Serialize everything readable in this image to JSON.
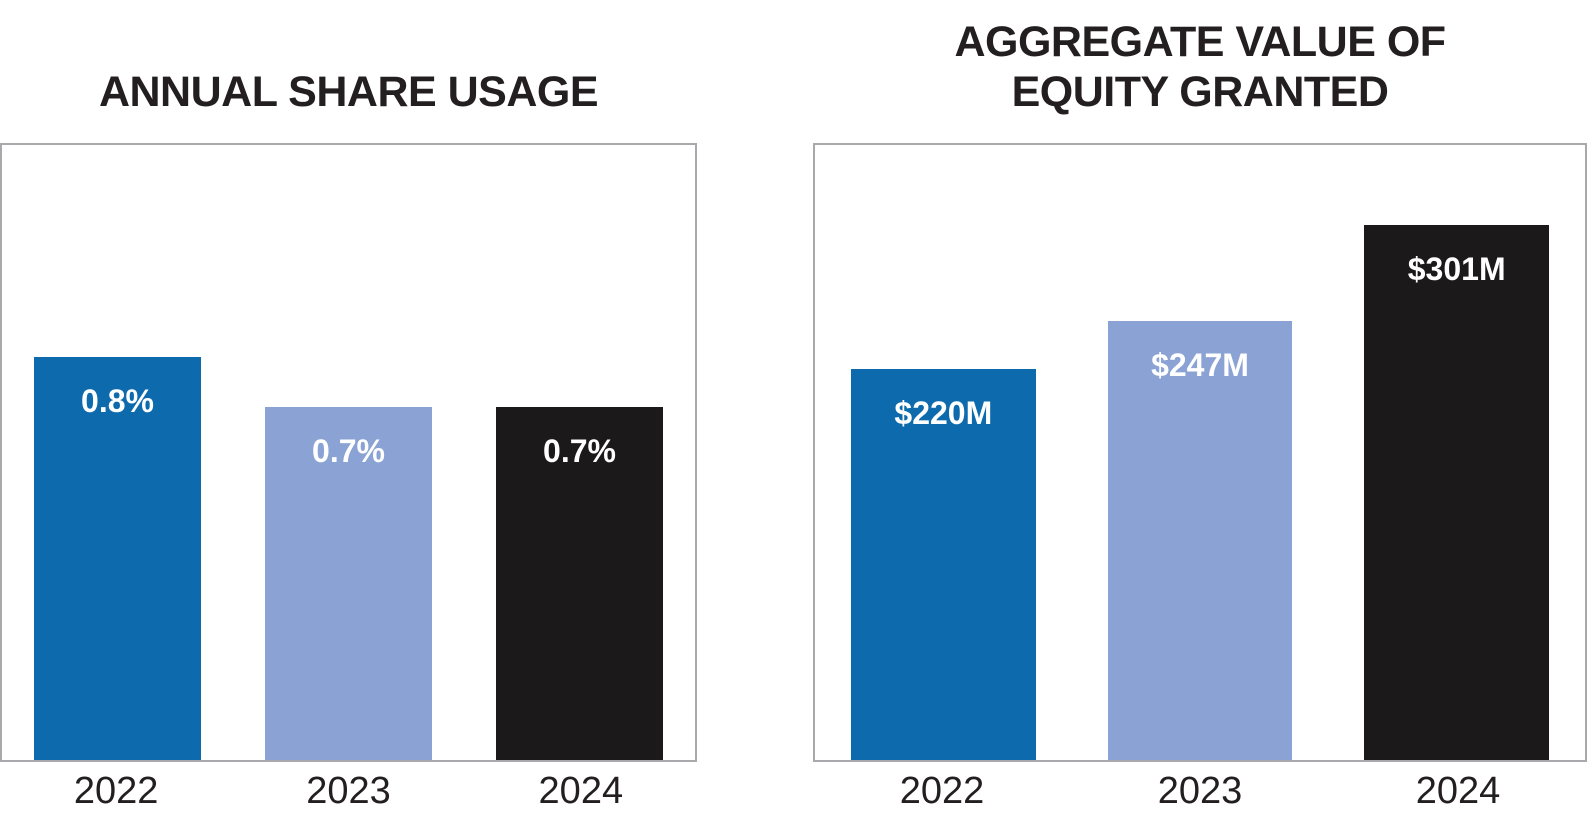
{
  "colors": {
    "background": "#ffffff",
    "title_text": "#231f20",
    "axis_text": "#231f20",
    "plot_border": "#a7a9ac",
    "value_label_text": "#ffffff",
    "bar_blue": "#0d6bad",
    "bar_light_blue": "#8ba3d4",
    "bar_black": "#1c191a"
  },
  "chart_data": [
    {
      "type": "bar",
      "title": "ANNUAL SHARE USAGE",
      "title_lines": [
        "ANNUAL SHARE USAGE"
      ],
      "categories": [
        "2022",
        "2023",
        "2024"
      ],
      "values": [
        0.8,
        0.7,
        0.7
      ],
      "value_labels": [
        "0.8%",
        "0.7%",
        "0.7%"
      ],
      "ylim": [
        0,
        1.22
      ],
      "bar_colors": [
        "#0d6bad",
        "#8ba3d4",
        "#1c191a"
      ],
      "grid": false,
      "legend": "none",
      "value_label_position": "inside-top",
      "xlabel": "",
      "ylabel": ""
    },
    {
      "type": "bar",
      "title": "AGGREGATE VALUE OF EQUITY GRANTED",
      "title_lines": [
        "AGGREGATE VALUE OF",
        "EQUITY GRANTED"
      ],
      "categories": [
        "2022",
        "2023",
        "2024"
      ],
      "values": [
        220,
        247,
        301
      ],
      "value_labels": [
        "$220M",
        "$247M",
        "$301M"
      ],
      "ylim": [
        0,
        346
      ],
      "bar_colors": [
        "#0d6bad",
        "#8ba3d4",
        "#1c191a"
      ],
      "grid": false,
      "legend": "none",
      "value_label_position": "inside-top",
      "xlabel": "",
      "ylabel": ""
    }
  ]
}
